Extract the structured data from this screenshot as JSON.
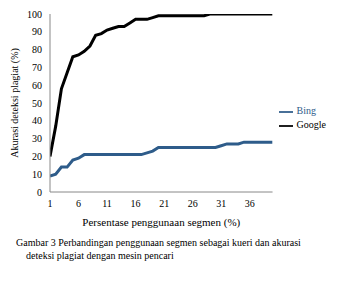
{
  "chart_data": {
    "type": "line",
    "title": "Gambar 3 Perbandingan penggunaan segmen sebagai kueri dan akurasi deteksi plagiat dengan mesin pencari",
    "x_label": "Persentase penggunaan segmen (%)",
    "y_label": "Akurasi deteksi plagiat (%)",
    "x": [
      1,
      2,
      3,
      4,
      5,
      6,
      7,
      8,
      9,
      10,
      11,
      12,
      13,
      14,
      15,
      16,
      17,
      18,
      19,
      20,
      21,
      22,
      23,
      24,
      25,
      26,
      27,
      28,
      29,
      30,
      31,
      32,
      33,
      34,
      35,
      36,
      37,
      38,
      39,
      40
    ],
    "series": [
      {
        "name": "Google",
        "color": "#000000",
        "values": [
          20,
          37,
          58,
          67,
          76,
          77,
          79,
          82,
          88,
          89,
          91,
          92,
          93,
          93,
          95,
          97,
          97,
          97,
          98,
          99,
          99,
          99,
          99,
          99,
          99,
          99,
          99,
          99,
          100,
          100,
          100,
          100,
          100,
          100,
          100,
          100,
          100,
          100,
          100,
          100
        ]
      },
      {
        "name": "Bing",
        "color": "#2e5c8a",
        "values": [
          9,
          10,
          14,
          14,
          18,
          19,
          21,
          21,
          21,
          21,
          21,
          21,
          21,
          21,
          21,
          21,
          21,
          22,
          23,
          25,
          25,
          25,
          25,
          25,
          25,
          25,
          25,
          25,
          25,
          25,
          26,
          27,
          27,
          27,
          28,
          28,
          28,
          28,
          28,
          28
        ]
      }
    ],
    "xlim": [
      1,
      40
    ],
    "xticks": [
      1,
      6,
      11,
      16,
      21,
      26,
      31,
      36
    ],
    "ylim": [
      0,
      100
    ],
    "yticks": [
      0,
      10,
      20,
      30,
      40,
      50,
      60,
      70,
      80,
      90,
      100
    ],
    "legend": "right",
    "grid": false
  }
}
